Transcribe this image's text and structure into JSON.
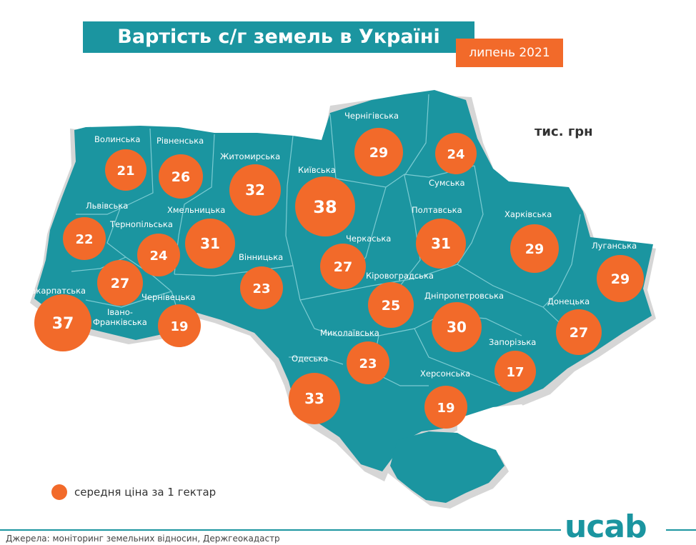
{
  "header": {
    "title": "Вартість с/г земель в Україні",
    "date": "липень 2021",
    "unit": "тис. грн"
  },
  "legend": {
    "text": "середня ціна за 1 гектар",
    "color": "#f26a2a"
  },
  "footer": {
    "source": "Джерела: моніторинг земельних відносин, Держгеокадастр",
    "logo": "ucab"
  },
  "colors": {
    "map_fill": "#1b95a0",
    "map_border": "#7ccbd2",
    "shadow": "#d6d6d6",
    "bubble": "#f26a2a"
  },
  "regions": [
    {
      "name": "Волинська",
      "value": 21
    },
    {
      "name": "Рівненська",
      "value": 26
    },
    {
      "name": "Житомирська",
      "value": 32
    },
    {
      "name": "Київська",
      "value": 38
    },
    {
      "name": "Чернігівська",
      "value": 29
    },
    {
      "name": "Сумська",
      "value": 24
    },
    {
      "name": "Львівська",
      "value": 22
    },
    {
      "name": "Тернопільська",
      "value": 24
    },
    {
      "name": "Хмельницька",
      "value": 31
    },
    {
      "name": "Вінницька",
      "value": 23
    },
    {
      "name": "Черкаська",
      "value": 27
    },
    {
      "name": "Полтавська",
      "value": 31
    },
    {
      "name": "Харківська",
      "value": 29
    },
    {
      "name": "Луганська",
      "value": 29
    },
    {
      "name": "Закарпатська",
      "value": 37
    },
    {
      "name": "Івано-Франківська",
      "value": 27
    },
    {
      "name": "Чернівецька",
      "value": 19
    },
    {
      "name": "Кіровоградська",
      "value": 25
    },
    {
      "name": "Дніпропетровська",
      "value": 30
    },
    {
      "name": "Донецька",
      "value": 27
    },
    {
      "name": "Миколаївська",
      "value": 23
    },
    {
      "name": "Одеська",
      "value": 33
    },
    {
      "name": "Запорізька",
      "value": 17
    },
    {
      "name": "Херсонська",
      "value": 19
    }
  ]
}
